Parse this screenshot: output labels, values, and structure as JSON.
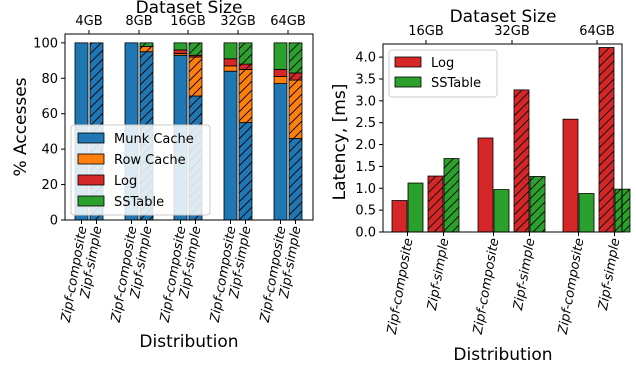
{
  "chart_data": [
    {
      "type": "bar",
      "stacked": true,
      "top_axis_label": "Dataset Size",
      "top_ticks": [
        "4GB",
        "8GB",
        "16GB",
        "32GB",
        "64GB"
      ],
      "xlabel": "Distribution",
      "ylabel": "% Accesses",
      "ylim": [
        0,
        105
      ],
      "yticks": [
        0,
        20,
        40,
        60,
        80,
        100
      ],
      "categories": [
        "Zipf-composite",
        "Zipf-simple"
      ],
      "groups": [
        "4GB",
        "8GB",
        "16GB",
        "32GB",
        "64GB"
      ],
      "hatched_category": "Zipf-simple",
      "legend": {
        "placement": "lower-left"
      },
      "series": [
        {
          "name": "Munk Cache",
          "color": "#1f77b4",
          "values": {
            "Zipf-composite": [
              100,
              100,
              93,
              84,
              77
            ],
            "Zipf-simple": [
              100,
              95,
              70,
              55,
              46
            ]
          }
        },
        {
          "name": "Row Cache",
          "color": "#ff7f0e",
          "values": {
            "Zipf-composite": [
              0,
              0,
              1,
              3,
              4
            ],
            "Zipf-simple": [
              0,
              3,
              22,
              30,
              33
            ]
          }
        },
        {
          "name": "Log",
          "color": "#d62728",
          "values": {
            "Zipf-composite": [
              0,
              0,
              2,
              4,
              4
            ],
            "Zipf-simple": [
              0,
              0,
              1,
              3,
              4
            ]
          }
        },
        {
          "name": "SSTable",
          "color": "#2ca02c",
          "values": {
            "Zipf-composite": [
              0,
              0,
              4,
              9,
              15
            ],
            "Zipf-simple": [
              0,
              2,
              7,
              12,
              17
            ]
          }
        }
      ]
    },
    {
      "type": "bar",
      "top_axis_label": "Dataset Size",
      "top_ticks": [
        "16GB",
        "32GB",
        "64GB"
      ],
      "xlabel": "Distribution",
      "ylabel": "Latency, [ms]",
      "ylim": [
        0,
        4.3
      ],
      "yticks": [
        "0.0",
        "0.5",
        "1.0",
        "1.5",
        "2.0",
        "2.5",
        "3.0",
        "3.5",
        "4.0"
      ],
      "groups": [
        "16GB",
        "32GB",
        "64GB"
      ],
      "categories": [
        "Zipf-composite",
        "Zipf-simple"
      ],
      "hatched_category": "Zipf-simple",
      "legend": {
        "placement": "top-left"
      },
      "series": [
        {
          "name": "Log",
          "color": "#d62728",
          "values": {
            "Zipf-composite": [
              0.72,
              2.15,
              2.58
            ],
            "Zipf-simple": [
              1.28,
              3.25,
              4.22
            ]
          }
        },
        {
          "name": "SSTable",
          "color": "#2ca02c",
          "values": {
            "Zipf-composite": [
              1.12,
              0.97,
              0.88
            ],
            "Zipf-simple": [
              1.68,
              1.27,
              0.98
            ]
          }
        }
      ]
    }
  ]
}
